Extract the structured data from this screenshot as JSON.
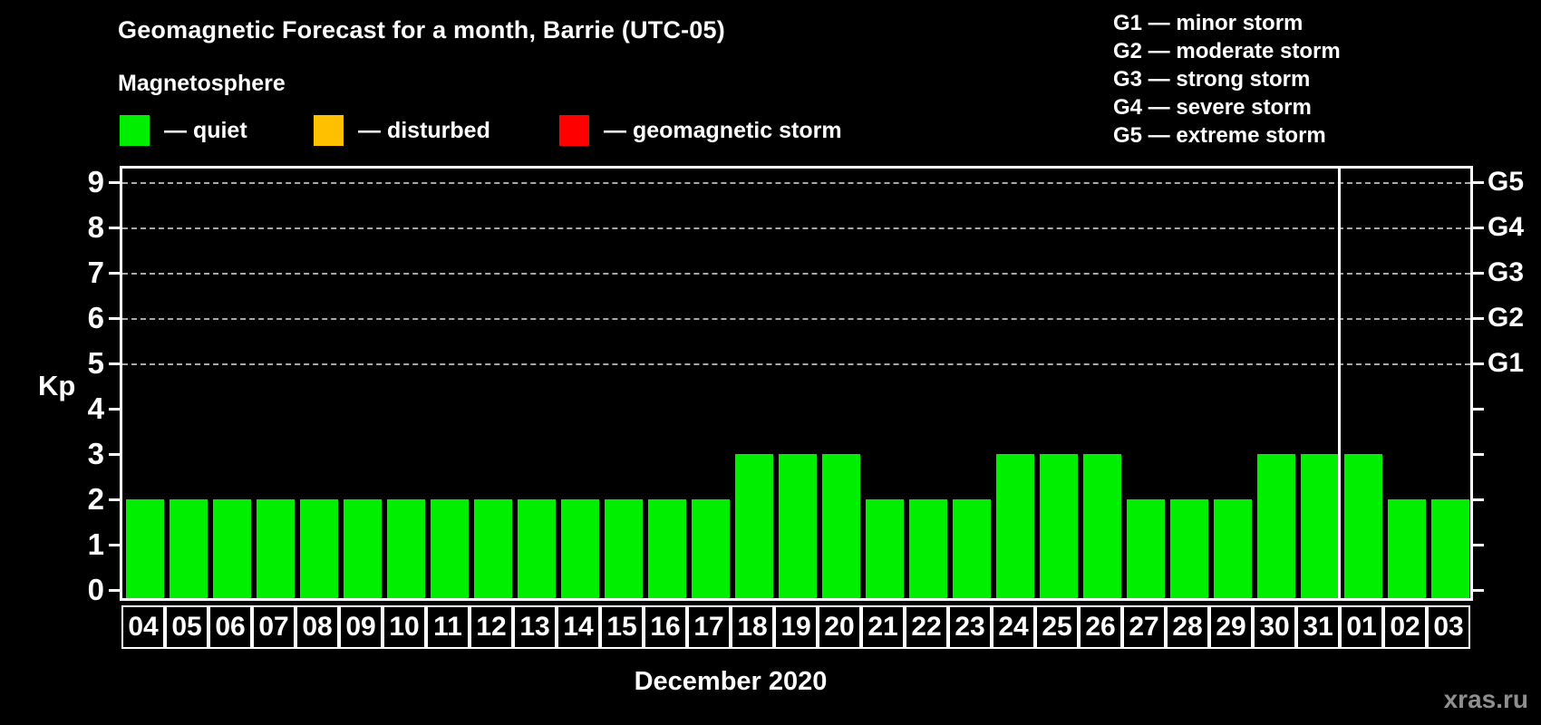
{
  "title": "Geomagnetic Forecast for a month, Barrie (UTC-05)",
  "subtitle": "Magnetosphere",
  "legend": {
    "items": [
      {
        "key": "quiet",
        "label": "— quiet",
        "color": "#00ee00"
      },
      {
        "key": "disturbed",
        "label": "— disturbed",
        "color": "#ffc000"
      },
      {
        "key": "storm",
        "label": "— geomagnetic storm",
        "color": "#ff0000"
      }
    ]
  },
  "storm_legend": [
    "G1 — minor storm",
    "G2 — moderate storm",
    "G3 — strong storm",
    "G4 — severe storm",
    "G5 — extreme storm"
  ],
  "chart_data": {
    "type": "bar",
    "title": "Geomagnetic Forecast for a month, Barrie (UTC-05)",
    "ylabel": "Kp",
    "caption": "December 2020",
    "ylim": [
      0,
      9
    ],
    "yticks": [
      0,
      1,
      2,
      3,
      4,
      5,
      6,
      7,
      8,
      9
    ],
    "grid": "dashed horizontal lines at Kp 5-9 only",
    "legend_position": "top-left",
    "right_axis_labels": [
      {
        "kp": 5,
        "label": "G1"
      },
      {
        "kp": 6,
        "label": "G2"
      },
      {
        "kp": 7,
        "label": "G3"
      },
      {
        "kp": 8,
        "label": "G4"
      },
      {
        "kp": 9,
        "label": "G5"
      }
    ],
    "grid_levels_kp": [
      5,
      6,
      7,
      8,
      9
    ],
    "categories": [
      "04",
      "05",
      "06",
      "07",
      "08",
      "09",
      "10",
      "11",
      "12",
      "13",
      "14",
      "15",
      "16",
      "17",
      "18",
      "19",
      "20",
      "21",
      "22",
      "23",
      "24",
      "25",
      "26",
      "27",
      "28",
      "29",
      "30",
      "31",
      "01",
      "02",
      "03"
    ],
    "values": [
      2,
      2,
      2,
      2,
      2,
      2,
      2,
      2,
      2,
      2,
      2,
      2,
      2,
      2,
      3,
      3,
      3,
      2,
      2,
      2,
      3,
      3,
      3,
      2,
      2,
      2,
      3,
      3,
      3,
      2,
      2
    ],
    "bar_color": "#00ee00",
    "month_separator_after_index": 27
  },
  "colors": {
    "background": "#000000",
    "axis": "#ffffff",
    "grid": "#a8a8a8",
    "quiet": "#00ee00",
    "disturbed": "#ffc000",
    "storm": "#ff0000",
    "text": "#ffffff",
    "watermark": "#8f8f8f"
  },
  "watermark": "xras.ru"
}
